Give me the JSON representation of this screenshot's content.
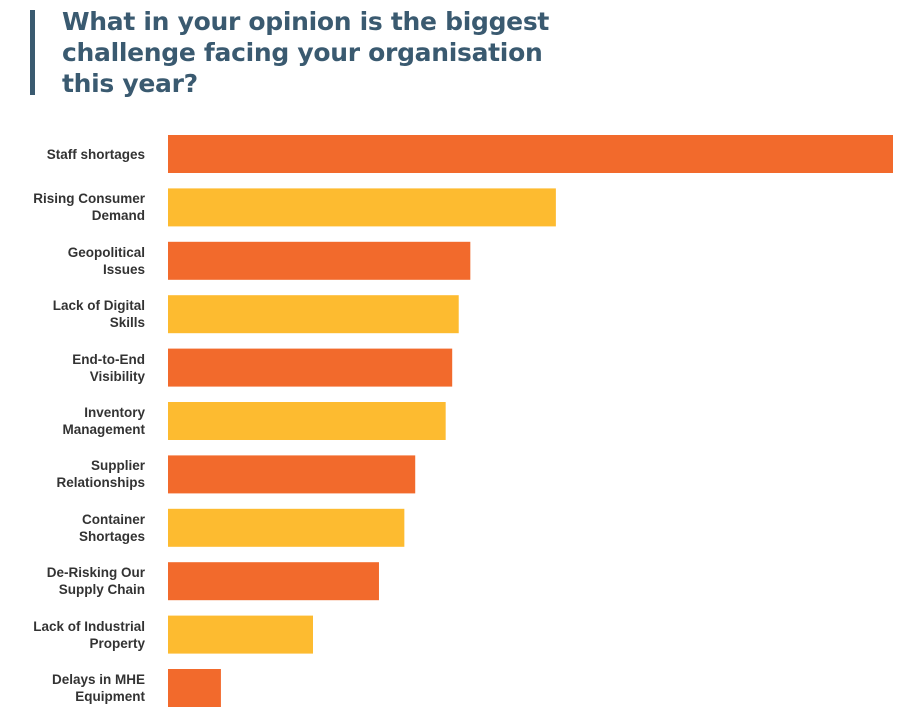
{
  "title": "What in your opinion is the biggest challenge facing your organisation this year?",
  "chart_data": {
    "type": "bar",
    "orientation": "horizontal",
    "title": "What in your opinion is the biggest challenge facing your organisation this year?",
    "categories": [
      "Staff shortages",
      "Rising Consumer Demand",
      "Geopolitical Issues",
      "Lack of Digital Skills",
      "End-to-End Visibility",
      "Inventory Management",
      "Supplier Relationships",
      "Container Shortages",
      "De-Risking Our Supply Chain",
      "Lack of Industrial Property",
      "Delays in MHE Equipment"
    ],
    "category_lines": [
      [
        "Staff shortages"
      ],
      [
        "Rising Consumer",
        "Demand"
      ],
      [
        "Geopolitical",
        "Issues"
      ],
      [
        "Lack of Digital",
        "Skills"
      ],
      [
        "End-to-End",
        "Visibility"
      ],
      [
        "Inventory",
        "Management"
      ],
      [
        "Supplier",
        "Relationships"
      ],
      [
        "Container",
        "Shortages"
      ],
      [
        "De-Risking Our",
        "Supply Chain"
      ],
      [
        "Lack of Industrial",
        "Property"
      ],
      [
        "Delays in MHE",
        "Equipment"
      ]
    ],
    "values": [
      100,
      53.5,
      41.7,
      40.1,
      39.2,
      38.3,
      34.1,
      32.6,
      29.1,
      20.0,
      7.3
    ],
    "value_note": "relative bar length, no axis printed",
    "xlim": [
      0,
      100
    ],
    "grid": false,
    "colors": [
      "#f26a2c",
      "#fdbb30"
    ]
  }
}
